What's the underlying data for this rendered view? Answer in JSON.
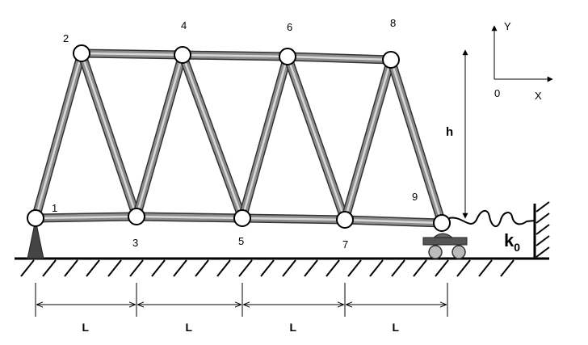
{
  "nodes": [
    "1",
    "2",
    "3",
    "4",
    "5",
    "6",
    "7",
    "8",
    "9"
  ],
  "spans": [
    "L",
    "L",
    "L",
    "L"
  ],
  "height_label": "h",
  "spring": {
    "symbol": "k",
    "subscript": "0"
  },
  "axes": {
    "y": "Y",
    "x": "X",
    "origin": "0"
  }
}
